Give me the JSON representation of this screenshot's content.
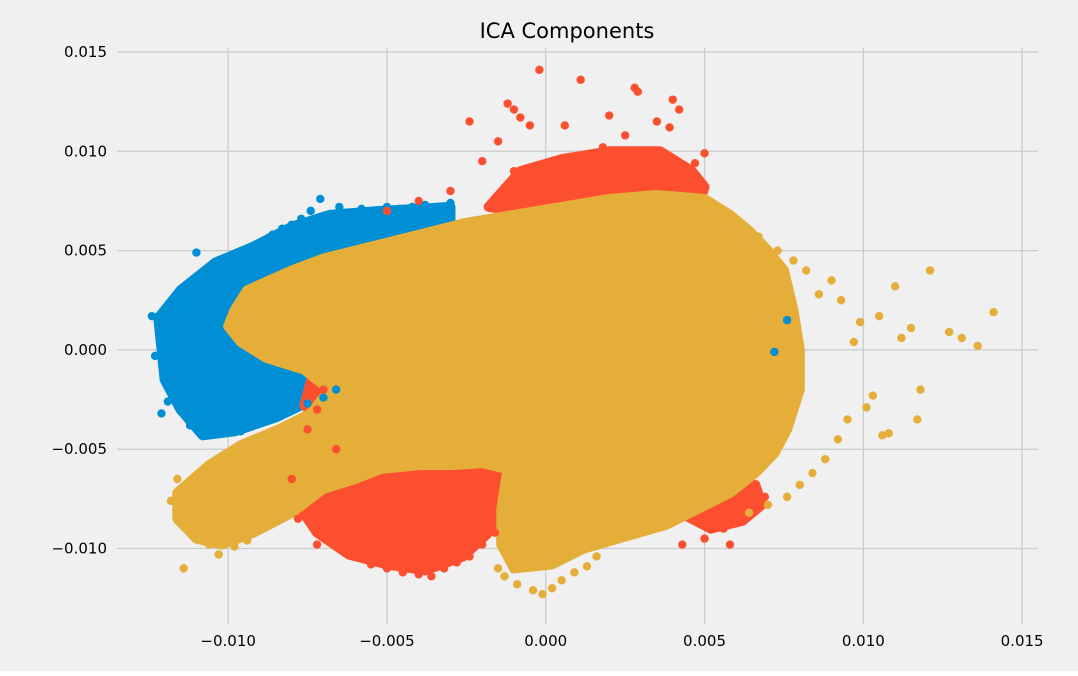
{
  "chart_data": {
    "type": "scatter",
    "title": "ICA Components",
    "xlabel": "",
    "ylabel": "",
    "xlim": [
      -0.0135,
      0.0155
    ],
    "ylim": [
      -0.0138,
      0.0152
    ],
    "grid": true,
    "xticks": [
      -0.01,
      -0.005,
      0.0,
      0.005,
      0.01,
      0.015
    ],
    "xtick_labels": [
      "−0.010",
      "−0.005",
      "0.000",
      "0.005",
      "0.010",
      "0.015"
    ],
    "yticks": [
      -0.01,
      -0.005,
      0.0,
      0.005,
      0.01,
      0.015
    ],
    "ytick_labels": [
      "−0.010",
      "−0.005",
      "0.000",
      "0.005",
      "0.010",
      "0.015"
    ],
    "series": [
      {
        "color": "#008fd5",
        "points": [
          [
            -0.0124,
            0.0017
          ],
          [
            -0.0123,
            -0.0003
          ],
          [
            -0.0121,
            -0.0032
          ],
          [
            -0.0119,
            -0.0026
          ],
          [
            -0.0118,
            0.0014
          ],
          [
            -0.0116,
            0.0024
          ],
          [
            -0.0115,
            -0.0011
          ],
          [
            -0.0113,
            0.0031
          ],
          [
            -0.0112,
            -0.0038
          ],
          [
            -0.011,
            0.0049
          ],
          [
            -0.011,
            0.0028
          ],
          [
            -0.0109,
            -0.0021
          ],
          [
            -0.0108,
            -0.0043
          ],
          [
            -0.0107,
            0.0036
          ],
          [
            -0.0106,
            0.0009
          ],
          [
            -0.0105,
            -0.0041
          ],
          [
            -0.0104,
            0.004
          ],
          [
            -0.0102,
            0.0019
          ],
          [
            -0.0101,
            -0.0034
          ],
          [
            -0.01,
            0.0043
          ],
          [
            -0.0098,
            -0.0028
          ],
          [
            -0.0096,
            0.0046
          ],
          [
            -0.0094,
            -0.0036
          ],
          [
            -0.0092,
            0.005
          ],
          [
            -0.009,
            -0.0024
          ],
          [
            -0.0088,
            0.0054
          ],
          [
            -0.0086,
            0.0058
          ],
          [
            -0.0083,
            0.0061
          ],
          [
            -0.008,
            0.0063
          ],
          [
            -0.0077,
            0.0066
          ],
          [
            -0.0074,
            0.007
          ],
          [
            -0.0071,
            0.0076
          ],
          [
            -0.0068,
            0.0068
          ],
          [
            -0.0065,
            0.0072
          ],
          [
            -0.0062,
            0.0069
          ],
          [
            -0.0058,
            0.0071
          ],
          [
            -0.0054,
            0.007
          ],
          [
            -0.005,
            0.0072
          ],
          [
            -0.0046,
            0.0071
          ],
          [
            -0.0042,
            0.0072
          ],
          [
            -0.0038,
            0.0073
          ],
          [
            -0.0034,
            0.0072
          ],
          [
            -0.003,
            0.0074
          ],
          [
            -0.0096,
            -0.0041
          ],
          [
            -0.009,
            -0.0037
          ],
          [
            -0.0085,
            -0.0032
          ],
          [
            -0.008,
            -0.003
          ],
          [
            -0.0075,
            -0.0027
          ],
          [
            -0.007,
            -0.0024
          ],
          [
            -0.0066,
            -0.002
          ],
          [
            0.0076,
            0.0015
          ],
          [
            0.0072,
            -0.0001
          ]
        ]
      },
      {
        "color": "#fc4f30",
        "points": [
          [
            -0.0002,
            0.0141
          ],
          [
            0.0011,
            0.0136
          ],
          [
            0.0028,
            0.0132
          ],
          [
            0.0029,
            0.013
          ],
          [
            -0.0012,
            0.0124
          ],
          [
            -0.001,
            0.0121
          ],
          [
            -0.0008,
            0.0117
          ],
          [
            -0.0005,
            0.0113
          ],
          [
            -0.0024,
            0.0115
          ],
          [
            0.0006,
            0.0113
          ],
          [
            0.004,
            0.0126
          ],
          [
            0.0042,
            0.0121
          ],
          [
            0.0039,
            0.0112
          ],
          [
            0.0035,
            0.0115
          ],
          [
            0.002,
            0.0118
          ],
          [
            0.005,
            0.0099
          ],
          [
            0.0047,
            0.0094
          ],
          [
            -0.0015,
            0.0105
          ],
          [
            0.0025,
            0.0108
          ],
          [
            0.0018,
            0.0102
          ],
          [
            -0.002,
            0.0095
          ],
          [
            0.0012,
            0.0098
          ],
          [
            -0.001,
            0.009
          ],
          [
            -0.003,
            0.008
          ],
          [
            -0.004,
            0.0075
          ],
          [
            -0.005,
            0.007
          ],
          [
            -0.007,
            -0.002
          ],
          [
            -0.0072,
            -0.003
          ],
          [
            -0.0075,
            -0.004
          ],
          [
            -0.0066,
            -0.005
          ],
          [
            -0.008,
            -0.0065
          ],
          [
            -0.0078,
            -0.0085
          ],
          [
            -0.0072,
            -0.0098
          ],
          [
            -0.0065,
            -0.01
          ],
          [
            -0.006,
            -0.0104
          ],
          [
            -0.0055,
            -0.0108
          ],
          [
            -0.005,
            -0.011
          ],
          [
            -0.0045,
            -0.0112
          ],
          [
            -0.004,
            -0.0113
          ],
          [
            -0.0036,
            -0.0114
          ],
          [
            -0.0032,
            -0.011
          ],
          [
            -0.0028,
            -0.0107
          ],
          [
            -0.0024,
            -0.0104
          ],
          [
            -0.002,
            -0.0098
          ],
          [
            -0.0016,
            -0.0092
          ],
          [
            0.0043,
            -0.0098
          ],
          [
            0.005,
            -0.0095
          ],
          [
            0.0056,
            -0.009
          ],
          [
            0.0062,
            -0.0085
          ],
          [
            0.0066,
            -0.008
          ],
          [
            0.0069,
            -0.0074
          ],
          [
            0.0058,
            -0.0098
          ]
        ]
      },
      {
        "color": "#e5ae38",
        "points": [
          [
            0.0141,
            0.0019
          ],
          [
            0.0136,
            0.0002
          ],
          [
            0.0131,
            0.0006
          ],
          [
            0.0127,
            0.0009
          ],
          [
            0.0121,
            0.004
          ],
          [
            0.0118,
            -0.002
          ],
          [
            0.0117,
            -0.0035
          ],
          [
            0.0115,
            0.0011
          ],
          [
            0.0112,
            0.0006
          ],
          [
            0.011,
            0.0032
          ],
          [
            0.0108,
            -0.0042
          ],
          [
            0.0106,
            -0.0043
          ],
          [
            0.0105,
            0.0017
          ],
          [
            0.0103,
            -0.0023
          ],
          [
            0.0101,
            -0.0029
          ],
          [
            0.0099,
            0.0014
          ],
          [
            0.0097,
            0.0004
          ],
          [
            0.0095,
            -0.0035
          ],
          [
            0.0093,
            0.0025
          ],
          [
            0.0092,
            -0.0045
          ],
          [
            0.009,
            0.0035
          ],
          [
            0.0088,
            -0.0055
          ],
          [
            0.0086,
            0.0028
          ],
          [
            0.0084,
            -0.0062
          ],
          [
            0.0082,
            0.004
          ],
          [
            0.008,
            -0.0068
          ],
          [
            0.0078,
            0.0045
          ],
          [
            0.0076,
            -0.0074
          ],
          [
            0.0073,
            0.005
          ],
          [
            0.007,
            -0.0078
          ],
          [
            0.0067,
            0.0057
          ],
          [
            0.0064,
            -0.0082
          ],
          [
            -0.0114,
            -0.011
          ],
          [
            -0.0118,
            -0.0076
          ],
          [
            -0.0116,
            -0.0065
          ],
          [
            -0.0113,
            -0.0089
          ],
          [
            -0.011,
            -0.0093
          ],
          [
            -0.0106,
            -0.0098
          ],
          [
            -0.0103,
            -0.0103
          ],
          [
            -0.0098,
            -0.0099
          ],
          [
            -0.0094,
            -0.0096
          ],
          [
            -0.0001,
            -0.0123
          ],
          [
            -0.0004,
            -0.0121
          ],
          [
            0.0002,
            -0.012
          ],
          [
            -0.0009,
            -0.0118
          ],
          [
            0.0005,
            -0.0116
          ],
          [
            -0.0013,
            -0.0114
          ],
          [
            0.0009,
            -0.0112
          ],
          [
            -0.0015,
            -0.011
          ],
          [
            0.0013,
            -0.0109
          ],
          [
            -0.001,
            -0.0106
          ],
          [
            0.0016,
            -0.0104
          ]
        ]
      }
    ],
    "clouds": [
      {
        "color": "#008fd5",
        "polygon": [
          [
            -0.0122,
            0.0016
          ],
          [
            -0.0115,
            0.003
          ],
          [
            -0.0104,
            0.0044
          ],
          [
            -0.0092,
            0.0052
          ],
          [
            -0.008,
            0.0062
          ],
          [
            -0.0068,
            0.0068
          ],
          [
            -0.0052,
            0.007
          ],
          [
            -0.004,
            0.0071
          ],
          [
            -0.003,
            0.0072
          ],
          [
            -0.003,
            0.006
          ],
          [
            -0.006,
            0.004
          ],
          [
            -0.0072,
            -0.0024
          ],
          [
            -0.0085,
            -0.0034
          ],
          [
            -0.0098,
            -0.0041
          ],
          [
            -0.0108,
            -0.0043
          ],
          [
            -0.0115,
            -0.003
          ],
          [
            -0.012,
            -0.0015
          ]
        ]
      },
      {
        "color": "#fc4f30",
        "polygon": [
          [
            -0.0018,
            0.0072
          ],
          [
            -0.0008,
            0.009
          ],
          [
            0.0005,
            0.0096
          ],
          [
            0.002,
            0.01
          ],
          [
            0.0036,
            0.01
          ],
          [
            0.0046,
            0.009
          ],
          [
            0.005,
            0.0082
          ],
          [
            0.0048,
            0.0072
          ],
          [
            0.003,
            0.007
          ],
          [
            0.0,
            0.0068
          ]
        ]
      },
      {
        "color": "#fc4f30",
        "polygon": [
          [
            -0.0078,
            -0.0078
          ],
          [
            -0.0072,
            -0.0092
          ],
          [
            -0.0062,
            -0.0103
          ],
          [
            -0.005,
            -0.0108
          ],
          [
            -0.0038,
            -0.0111
          ],
          [
            -0.0026,
            -0.0104
          ],
          [
            -0.0018,
            -0.0092
          ],
          [
            -0.001,
            -0.008
          ],
          [
            -0.0014,
            -0.006
          ],
          [
            -0.0045,
            -0.0052
          ],
          [
            -0.0064,
            -0.0058
          ],
          [
            -0.0074,
            -0.0066
          ]
        ]
      },
      {
        "color": "#fc4f30",
        "polygon": [
          [
            0.004,
            -0.008
          ],
          [
            0.0052,
            -0.009
          ],
          [
            0.0062,
            -0.0086
          ],
          [
            0.0068,
            -0.0078
          ],
          [
            0.0066,
            -0.0068
          ],
          [
            0.0052,
            -0.007
          ]
        ]
      },
      {
        "color": "#fc4f30",
        "polygon": [
          [
            -0.0074,
            -0.0016
          ],
          [
            -0.0066,
            -0.0014
          ],
          [
            -0.0062,
            -0.0028
          ],
          [
            -0.007,
            -0.0036
          ],
          [
            -0.0076,
            -0.0028
          ]
        ]
      },
      {
        "color": "#e5ae38",
        "polygon": [
          [
            -0.0098,
            0.002
          ],
          [
            -0.0094,
            0.003
          ],
          [
            -0.008,
            0.004
          ],
          [
            -0.007,
            0.0046
          ],
          [
            -0.0055,
            0.0052
          ],
          [
            -0.004,
            0.0058
          ],
          [
            -0.0025,
            0.0064
          ],
          [
            -0.001,
            0.0068
          ],
          [
            0.0005,
            0.0072
          ],
          [
            0.002,
            0.0076
          ],
          [
            0.0035,
            0.0078
          ],
          [
            0.005,
            0.0076
          ],
          [
            0.0058,
            0.0068
          ],
          [
            0.0064,
            0.006
          ],
          [
            0.007,
            0.005
          ],
          [
            0.0075,
            0.004
          ],
          [
            0.0078,
            0.002
          ],
          [
            0.008,
            0.0
          ],
          [
            0.008,
            -0.002
          ],
          [
            0.0076,
            -0.004
          ],
          [
            0.0072,
            -0.0052
          ],
          [
            0.0066,
            -0.0062
          ],
          [
            0.0058,
            -0.0072
          ],
          [
            0.0048,
            -0.008
          ],
          [
            0.0038,
            -0.0088
          ],
          [
            0.0025,
            -0.0094
          ],
          [
            0.0012,
            -0.01
          ],
          [
            0.0002,
            -0.0108
          ],
          [
            -0.001,
            -0.011
          ],
          [
            -0.0014,
            -0.0098
          ],
          [
            -0.0014,
            -0.008
          ],
          [
            -0.0012,
            -0.006
          ],
          [
            -0.002,
            -0.0057
          ],
          [
            -0.003,
            -0.0058
          ],
          [
            -0.004,
            -0.0058
          ],
          [
            -0.0052,
            -0.006
          ],
          [
            -0.006,
            -0.0065
          ],
          [
            -0.007,
            -0.007
          ],
          [
            -0.008,
            -0.0082
          ],
          [
            -0.0092,
            -0.0092
          ],
          [
            -0.0102,
            -0.0098
          ],
          [
            -0.011,
            -0.0095
          ],
          [
            -0.0116,
            -0.0085
          ],
          [
            -0.0116,
            -0.0072
          ],
          [
            -0.0106,
            -0.0058
          ],
          [
            -0.0096,
            -0.0048
          ],
          [
            -0.0084,
            -0.004
          ],
          [
            -0.0074,
            -0.0032
          ],
          [
            -0.0068,
            -0.002
          ],
          [
            -0.0076,
            -0.001
          ],
          [
            -0.0088,
            -0.0004
          ],
          [
            -0.0096,
            0.0004
          ],
          [
            -0.01,
            0.0012
          ]
        ]
      }
    ]
  }
}
